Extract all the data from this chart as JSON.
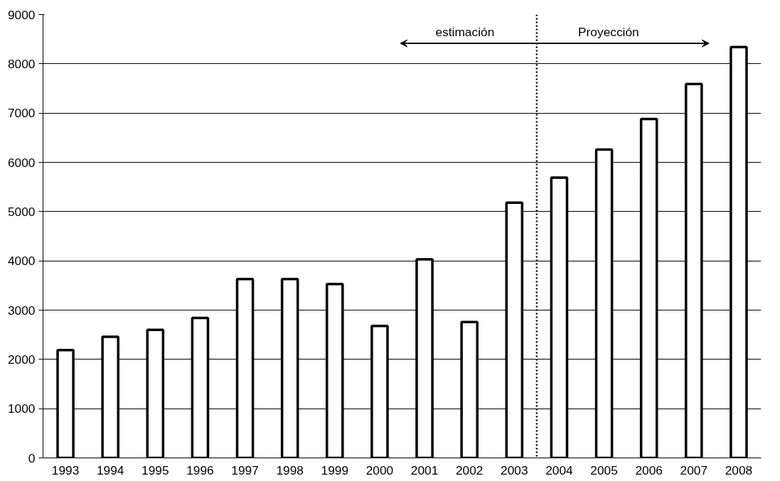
{
  "chart_data": {
    "type": "bar",
    "x": [
      1993,
      1994,
      1995,
      1996,
      1997,
      1998,
      1999,
      2000,
      2001,
      2002,
      2003,
      2004,
      2005,
      2006,
      2007,
      2008
    ],
    "values": [
      2190,
      2460,
      2600,
      2840,
      3630,
      3630,
      3530,
      2680,
      4030,
      2760,
      5180,
      5690,
      6260,
      6880,
      7590,
      8340
    ],
    "color": "#ffffff",
    "xlim": [
      1992.5,
      2008.5
    ],
    "xticks": [
      1993,
      1994,
      1995,
      1996,
      1997,
      1998,
      1999,
      2000,
      2001,
      2002,
      2003,
      2004,
      2005,
      2006,
      2007,
      2008
    ],
    "ylim": [
      0,
      9000
    ],
    "yticks": [
      0,
      1000,
      2000,
      3000,
      4000,
      5000,
      6000,
      7000,
      8000,
      9000
    ],
    "grid": "y",
    "ref_lines": [
      {
        "axis": "x",
        "value": 2003.5,
        "line_style": "dotted",
        "color": "#000000"
      }
    ],
    "annotations": [
      "estimación",
      "Proyección"
    ]
  }
}
